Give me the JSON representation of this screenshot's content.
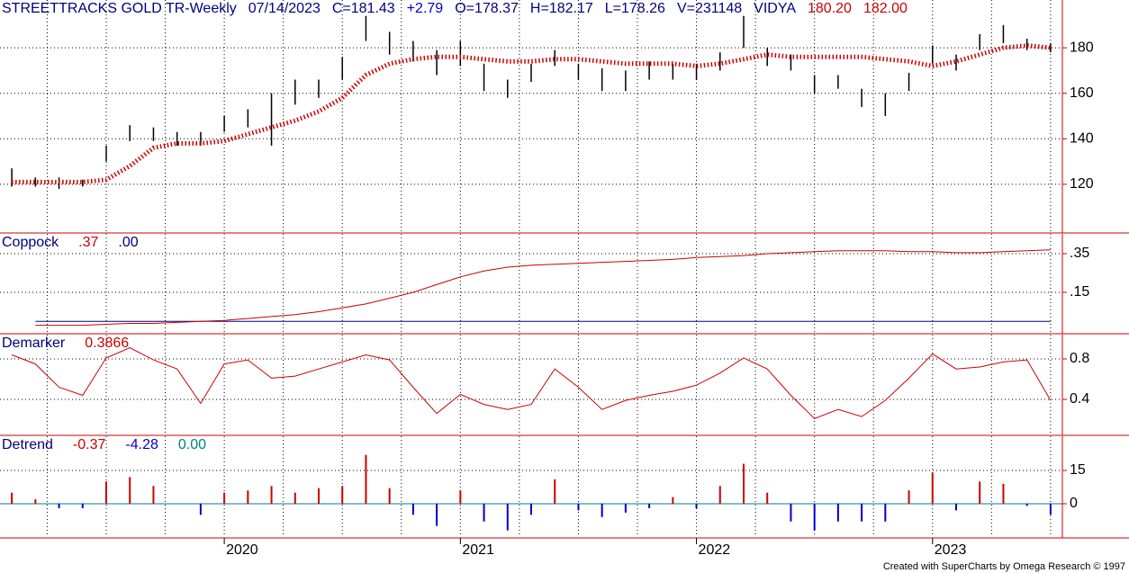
{
  "chart_data": [
    {
      "type": "ohlc",
      "header": [
        {
          "text": "STREETTRACKS GOLD TR-Weekly",
          "color": "#000080"
        },
        {
          "text": "07/14/2023",
          "color": "#000080"
        },
        {
          "text": "C=181.43",
          "color": "#000080"
        },
        {
          "text": "+2.79",
          "color": "#0000cc"
        },
        {
          "text": "O=178.37",
          "color": "#000080"
        },
        {
          "text": "H=182.17",
          "color": "#000080"
        },
        {
          "text": "L=178.26",
          "color": "#000080"
        },
        {
          "text": "V=231148",
          "color": "#000080"
        },
        {
          "text": "VIDYA",
          "color": "#000080"
        },
        {
          "text": "180.20",
          "color": "#cc0000"
        },
        {
          "text": "182.00",
          "color": "#cc0000"
        }
      ],
      "x": [
        2019.1,
        2019.2,
        2019.3,
        2019.4,
        2019.5,
        2019.6,
        2019.7,
        2019.8,
        2019.9,
        2020.0,
        2020.1,
        2020.2,
        2020.3,
        2020.4,
        2020.5,
        2020.6,
        2020.7,
        2020.8,
        2020.9,
        2021.0,
        2021.1,
        2021.2,
        2021.3,
        2021.4,
        2021.5,
        2021.6,
        2021.7,
        2021.8,
        2021.9,
        2022.0,
        2022.1,
        2022.2,
        2022.3,
        2022.4,
        2022.5,
        2022.6,
        2022.7,
        2022.8,
        2022.9,
        2023.0,
        2023.1,
        2023.2,
        2023.3,
        2023.4,
        2023.5
      ],
      "high": [
        127,
        123,
        123,
        122,
        137,
        146,
        145,
        143,
        143,
        150,
        153,
        160,
        166,
        166,
        176,
        194,
        187,
        183,
        179,
        183,
        173,
        166,
        173,
        179,
        173,
        171,
        170,
        174,
        173,
        173,
        178,
        194,
        180,
        177,
        168,
        168,
        162,
        160,
        169,
        181,
        177,
        186,
        190,
        184,
        182
      ],
      "low": [
        119,
        119,
        118,
        119,
        130,
        139,
        139,
        137,
        137,
        143,
        145,
        137,
        155,
        158,
        166,
        183,
        177,
        174,
        168,
        172,
        161,
        158,
        165,
        172,
        166,
        161,
        161,
        166,
        166,
        166,
        170,
        180,
        172,
        170,
        160,
        162,
        154,
        150,
        161,
        173,
        170,
        179,
        182,
        179,
        178
      ],
      "bar_color": "#000000",
      "series": [
        {
          "name": "VIDYA",
          "color": "#cc0000",
          "values": [
            121,
            121,
            121,
            121,
            122,
            128,
            136,
            138,
            138,
            139,
            142,
            145,
            148,
            152,
            158,
            168,
            173,
            175,
            176,
            176,
            175,
            174,
            174,
            175,
            175,
            174,
            173,
            173,
            173,
            172,
            173,
            175,
            177,
            176,
            176,
            176,
            176,
            175,
            174,
            172,
            174,
            177,
            180,
            181,
            180
          ]
        }
      ],
      "xlim": [
        2019.05,
        2023.55
      ],
      "ylim": [
        99,
        201
      ],
      "yticks": [
        120,
        140,
        160,
        180
      ],
      "xgrid": [
        2019.25,
        2019.5,
        2019.75,
        2020.0,
        2020.25,
        2020.5,
        2020.75,
        2021.0,
        2021.25,
        2021.5,
        2021.75,
        2022.0,
        2022.25,
        2022.5,
        2022.75,
        2023.0,
        2023.25,
        2023.5
      ]
    },
    {
      "type": "line",
      "header": [
        {
          "text": "Coppock",
          "color": "#000080"
        },
        {
          "text": ".37",
          "color": "#cc0000"
        },
        {
          "text": ".00",
          "color": "#000080"
        }
      ],
      "x": [
        2019.1,
        2019.2,
        2019.3,
        2019.4,
        2019.5,
        2019.6,
        2019.7,
        2019.8,
        2019.9,
        2020.0,
        2020.1,
        2020.2,
        2020.3,
        2020.4,
        2020.5,
        2020.6,
        2020.7,
        2020.8,
        2020.9,
        2021.0,
        2021.1,
        2021.2,
        2021.3,
        2021.4,
        2021.5,
        2021.6,
        2021.7,
        2021.8,
        2021.9,
        2022.0,
        2022.1,
        2022.2,
        2022.3,
        2022.4,
        2022.5,
        2022.6,
        2022.7,
        2022.8,
        2022.9,
        2023.0,
        2023.1,
        2023.2,
        2023.3,
        2023.4,
        2023.5
      ],
      "series": [
        {
          "name": "Coppock",
          "color": "#cc0000",
          "values": [
            null,
            -0.02,
            -0.02,
            -0.02,
            -0.015,
            -0.01,
            -0.01,
            -0.005,
            0.0,
            0.005,
            0.015,
            0.025,
            0.035,
            0.05,
            0.07,
            0.09,
            0.12,
            0.15,
            0.19,
            0.23,
            0.26,
            0.28,
            0.29,
            0.295,
            0.3,
            0.305,
            0.31,
            0.315,
            0.32,
            0.33,
            0.335,
            0.34,
            0.35,
            0.355,
            0.36,
            0.365,
            0.365,
            0.365,
            0.36,
            0.36,
            0.355,
            0.355,
            0.36,
            0.365,
            0.37
          ]
        }
      ],
      "signal": 0,
      "signal_color": "#000080",
      "xlim": [
        2019.05,
        2023.55
      ],
      "ylim": [
        -0.059,
        0.452
      ],
      "yticks": [
        {
          "value": 0.35,
          "label": ".35"
        },
        {
          "value": 0.15,
          "label": ".15"
        }
      ]
    },
    {
      "type": "line",
      "header": [
        {
          "text": "Demarker",
          "color": "#000080"
        },
        {
          "text": "0.3866",
          "color": "#cc0000"
        }
      ],
      "x": [
        2019.1,
        2019.2,
        2019.3,
        2019.4,
        2019.5,
        2019.6,
        2019.7,
        2019.8,
        2019.9,
        2020.0,
        2020.1,
        2020.2,
        2020.3,
        2020.4,
        2020.5,
        2020.6,
        2020.7,
        2020.8,
        2020.9,
        2021.0,
        2021.1,
        2021.2,
        2021.3,
        2021.4,
        2021.5,
        2021.6,
        2021.7,
        2021.8,
        2021.9,
        2022.0,
        2022.1,
        2022.2,
        2022.3,
        2022.4,
        2022.5,
        2022.6,
        2022.7,
        2022.8,
        2022.9,
        2023.0,
        2023.1,
        2023.2,
        2023.3,
        2023.4,
        2023.5
      ],
      "series": [
        {
          "name": "Demarker",
          "color": "#cc0000",
          "values": [
            0.84,
            0.75,
            0.52,
            0.44,
            0.81,
            0.91,
            0.79,
            0.7,
            0.36,
            0.75,
            0.79,
            0.61,
            0.63,
            0.7,
            0.77,
            0.84,
            0.79,
            0.52,
            0.26,
            0.45,
            0.35,
            0.3,
            0.35,
            0.7,
            0.52,
            0.3,
            0.39,
            0.44,
            0.48,
            0.54,
            0.66,
            0.81,
            0.7,
            0.44,
            0.21,
            0.3,
            0.23,
            0.39,
            0.61,
            0.85,
            0.7,
            0.72,
            0.77,
            0.79,
            0.39
          ]
        }
      ],
      "xlim": [
        2019.05,
        2023.55
      ],
      "ylim": [
        0.053,
        1.04
      ],
      "yticks": [
        0.8,
        0.4
      ]
    },
    {
      "type": "histogram-bars",
      "header": [
        {
          "text": "Detrend",
          "color": "#000080"
        },
        {
          "text": "-0.37",
          "color": "#cc0000"
        },
        {
          "text": "-4.28",
          "color": "#0000cc"
        },
        {
          "text": "0.00",
          "color": "#008080"
        }
      ],
      "x": [
        2019.1,
        2019.2,
        2019.3,
        2019.4,
        2019.5,
        2019.6,
        2019.7,
        2019.8,
        2019.9,
        2020.0,
        2020.1,
        2020.2,
        2020.3,
        2020.4,
        2020.5,
        2020.6,
        2020.7,
        2020.8,
        2020.9,
        2021.0,
        2021.1,
        2021.2,
        2021.3,
        2021.4,
        2021.5,
        2021.6,
        2021.7,
        2021.8,
        2021.9,
        2022.0,
        2022.1,
        2022.2,
        2022.3,
        2022.4,
        2022.5,
        2022.6,
        2022.7,
        2022.8,
        2022.9,
        2023.0,
        2023.1,
        2023.2,
        2023.3,
        2023.4,
        2023.5
      ],
      "values": [
        5,
        2,
        -2,
        -2,
        10,
        12,
        8,
        0,
        -5,
        5,
        6,
        8,
        5,
        7,
        8,
        22,
        7,
        -5,
        -10,
        6,
        -8,
        -12,
        -5,
        11,
        -3,
        -6,
        -4,
        -2,
        3,
        -2,
        8,
        18,
        5,
        -8,
        -12,
        -8,
        -8,
        -8,
        6,
        14,
        -3,
        10,
        9,
        -1,
        -5
      ],
      "positive_color": "#cc0000",
      "negative_color": "#0000cc",
      "zero_color": "#008080",
      "xlim": [
        2019.05,
        2023.55
      ],
      "ylim": [
        -15,
        30.4
      ],
      "yticks": [
        15,
        0
      ],
      "xticks": [
        2020,
        2021,
        2022,
        2023
      ]
    }
  ],
  "footer": "Created with SuperCharts by Omega Research © 1997"
}
